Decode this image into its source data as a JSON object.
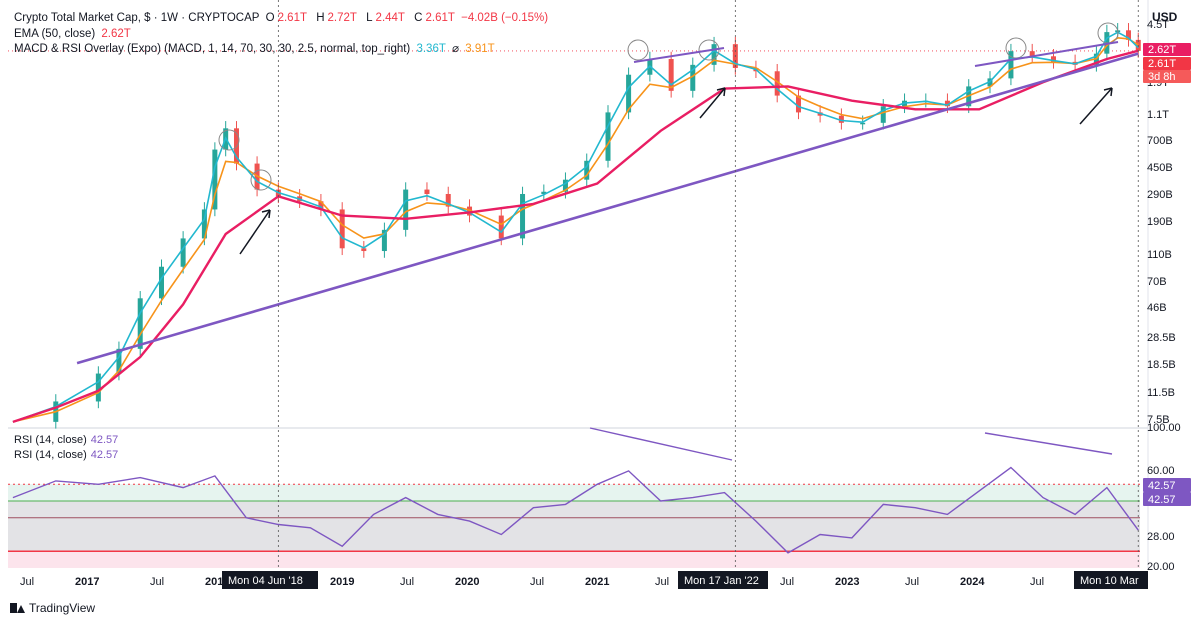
{
  "header": {
    "symbol": "Crypto Total Market Cap, $ · 1W · CRYPTOCAP",
    "o_label": "O",
    "o_value": "2.61T",
    "h_label": "H",
    "h_value": "2.72T",
    "l_label": "L",
    "l_value": "2.44T",
    "c_label": "C",
    "c_value": "2.61T",
    "change": "−4.02B (−0.15%)",
    "ema_label": "EMA (50, close)",
    "ema_value": "2.62T",
    "macd_label": "MACD & RSI Overlay (Expo) (MACD, 1, 14, 70, 30, 30, 2.5, normal, top_right)",
    "macd_value1": "3.36T",
    "macd_sep": "⌀",
    "macd_value2": "3.91T"
  },
  "currency": "USD",
  "rsi_legend": {
    "label": "RSI (14, close)",
    "value": "42.57"
  },
  "price_axis_labels": [
    "4.5T",
    "2.62T",
    "2.61T",
    "3d 8h",
    "1.9T",
    "1.1T",
    "700B",
    "450B",
    "290B",
    "190B",
    "110B",
    "70B",
    "46B",
    "28.5B",
    "18.5B",
    "11.5B",
    "7.5B"
  ],
  "price_badges": {
    "ema": "2.62T",
    "price": "2.61T",
    "countdown": "3d 8h"
  },
  "rsi_axis_labels": [
    "100.00",
    "60.00",
    "28.00",
    "20.00"
  ],
  "rsi_badges": [
    "42.57",
    "42.57"
  ],
  "time_axis_labels": [
    "Jul",
    "2017",
    "Jul",
    "201",
    "2019",
    "Jul",
    "2020",
    "Jul",
    "2021",
    "Jul",
    "Jul",
    "2023",
    "Jul",
    "2024",
    "Jul"
  ],
  "crosshair_labels": [
    "Mon 04 Jun '18",
    "Mon 17 Jan '22",
    "Mon 10 Mar"
  ],
  "brand": "TradingView",
  "colors": {
    "candle_up": "#26a69a",
    "candle_down": "#ef5350",
    "ema": "#e91e63",
    "macd": "#22b8cf",
    "signal": "#f7931a",
    "trend": "#7e57c2",
    "rsi": "#7e57c2"
  },
  "chart_data": {
    "type": "line",
    "title": "Crypto Total Market Cap, $ · 1W · CRYPTOCAP",
    "scale": "log",
    "ylim": [
      7.5,
      4500
    ],
    "y_units": "B USD",
    "x_range": [
      "2016-05",
      "2025-03"
    ],
    "series": [
      {
        "name": "Crypto Total Market Cap",
        "kind": "candles",
        "x": [
          "2016-05",
          "2016-09",
          "2017-01",
          "2017-03",
          "2017-05",
          "2017-07",
          "2017-09",
          "2017-11",
          "2017-12",
          "2018-01",
          "2018-02",
          "2018-04",
          "2018-06",
          "2018-08",
          "2018-10",
          "2018-12",
          "2019-02",
          "2019-04",
          "2019-06",
          "2019-08",
          "2019-10",
          "2019-12",
          "2020-03",
          "2020-05",
          "2020-07",
          "2020-09",
          "2020-11",
          "2021-01",
          "2021-03",
          "2021-05",
          "2021-07",
          "2021-09",
          "2021-11",
          "2022-01",
          "2022-03",
          "2022-05",
          "2022-07",
          "2022-09",
          "2022-11",
          "2023-01",
          "2023-03",
          "2023-05",
          "2023-07",
          "2023-09",
          "2023-11",
          "2024-01",
          "2024-03",
          "2024-05",
          "2024-07",
          "2024-09",
          "2024-11",
          "2024-12",
          "2025-01",
          "2025-02",
          "2025-03"
        ],
        "values": [
          8,
          11,
          17,
          25,
          55,
          90,
          140,
          220,
          560,
          780,
          450,
          300,
          270,
          250,
          220,
          120,
          115,
          160,
          300,
          280,
          230,
          200,
          140,
          280,
          290,
          350,
          470,
          1000,
          1800,
          2300,
          1400,
          2100,
          2900,
          2000,
          1900,
          1300,
          1000,
          950,
          850,
          850,
          1100,
          1200,
          1200,
          1100,
          1500,
          1700,
          2600,
          2400,
          2200,
          2100,
          2500,
          3500,
          3600,
          3100,
          2610
        ]
      },
      {
        "name": "EMA (50, close)",
        "kind": "line",
        "x": [
          "2016-05",
          "2016-09",
          "2017-01",
          "2017-05",
          "2017-09",
          "2018-01",
          "2018-06",
          "2018-12",
          "2019-06",
          "2019-12",
          "2020-06",
          "2020-12",
          "2021-06",
          "2021-12",
          "2022-06",
          "2022-12",
          "2023-06",
          "2023-12",
          "2024-06",
          "2024-12",
          "2025-03"
        ],
        "values": [
          8,
          10,
          13,
          22,
          50,
          150,
          270,
          200,
          190,
          210,
          240,
          330,
          750,
          1450,
          1500,
          1200,
          1050,
          1050,
          1600,
          2300,
          2620
        ]
      },
      {
        "name": "Trendline",
        "kind": "line",
        "x": [
          "2016-11",
          "2025-03"
        ],
        "values": [
          20,
          2500
        ]
      }
    ],
    "rsi": {
      "name": "RSI (14, close)",
      "ylim": [
        20,
        100
      ],
      "levels": [
        70,
        60,
        50,
        30
      ],
      "x": [
        "2016-05",
        "2016-09",
        "2017-01",
        "2017-05",
        "2017-09",
        "2017-12",
        "2018-03",
        "2018-06",
        "2018-09",
        "2018-12",
        "2019-03",
        "2019-06",
        "2019-09",
        "2019-12",
        "2020-03",
        "2020-06",
        "2020-09",
        "2020-12",
        "2021-03",
        "2021-06",
        "2021-09",
        "2021-12",
        "2022-03",
        "2022-06",
        "2022-09",
        "2022-12",
        "2023-03",
        "2023-06",
        "2023-09",
        "2023-12",
        "2024-03",
        "2024-06",
        "2024-09",
        "2024-12",
        "2025-03"
      ],
      "values": [
        62,
        72,
        70,
        74,
        68,
        75,
        50,
        46,
        44,
        33,
        52,
        62,
        52,
        48,
        40,
        56,
        58,
        70,
        78,
        60,
        62,
        65,
        48,
        29,
        40,
        38,
        58,
        56,
        52,
        66,
        80,
        62,
        52,
        68,
        42.57
      ]
    }
  }
}
